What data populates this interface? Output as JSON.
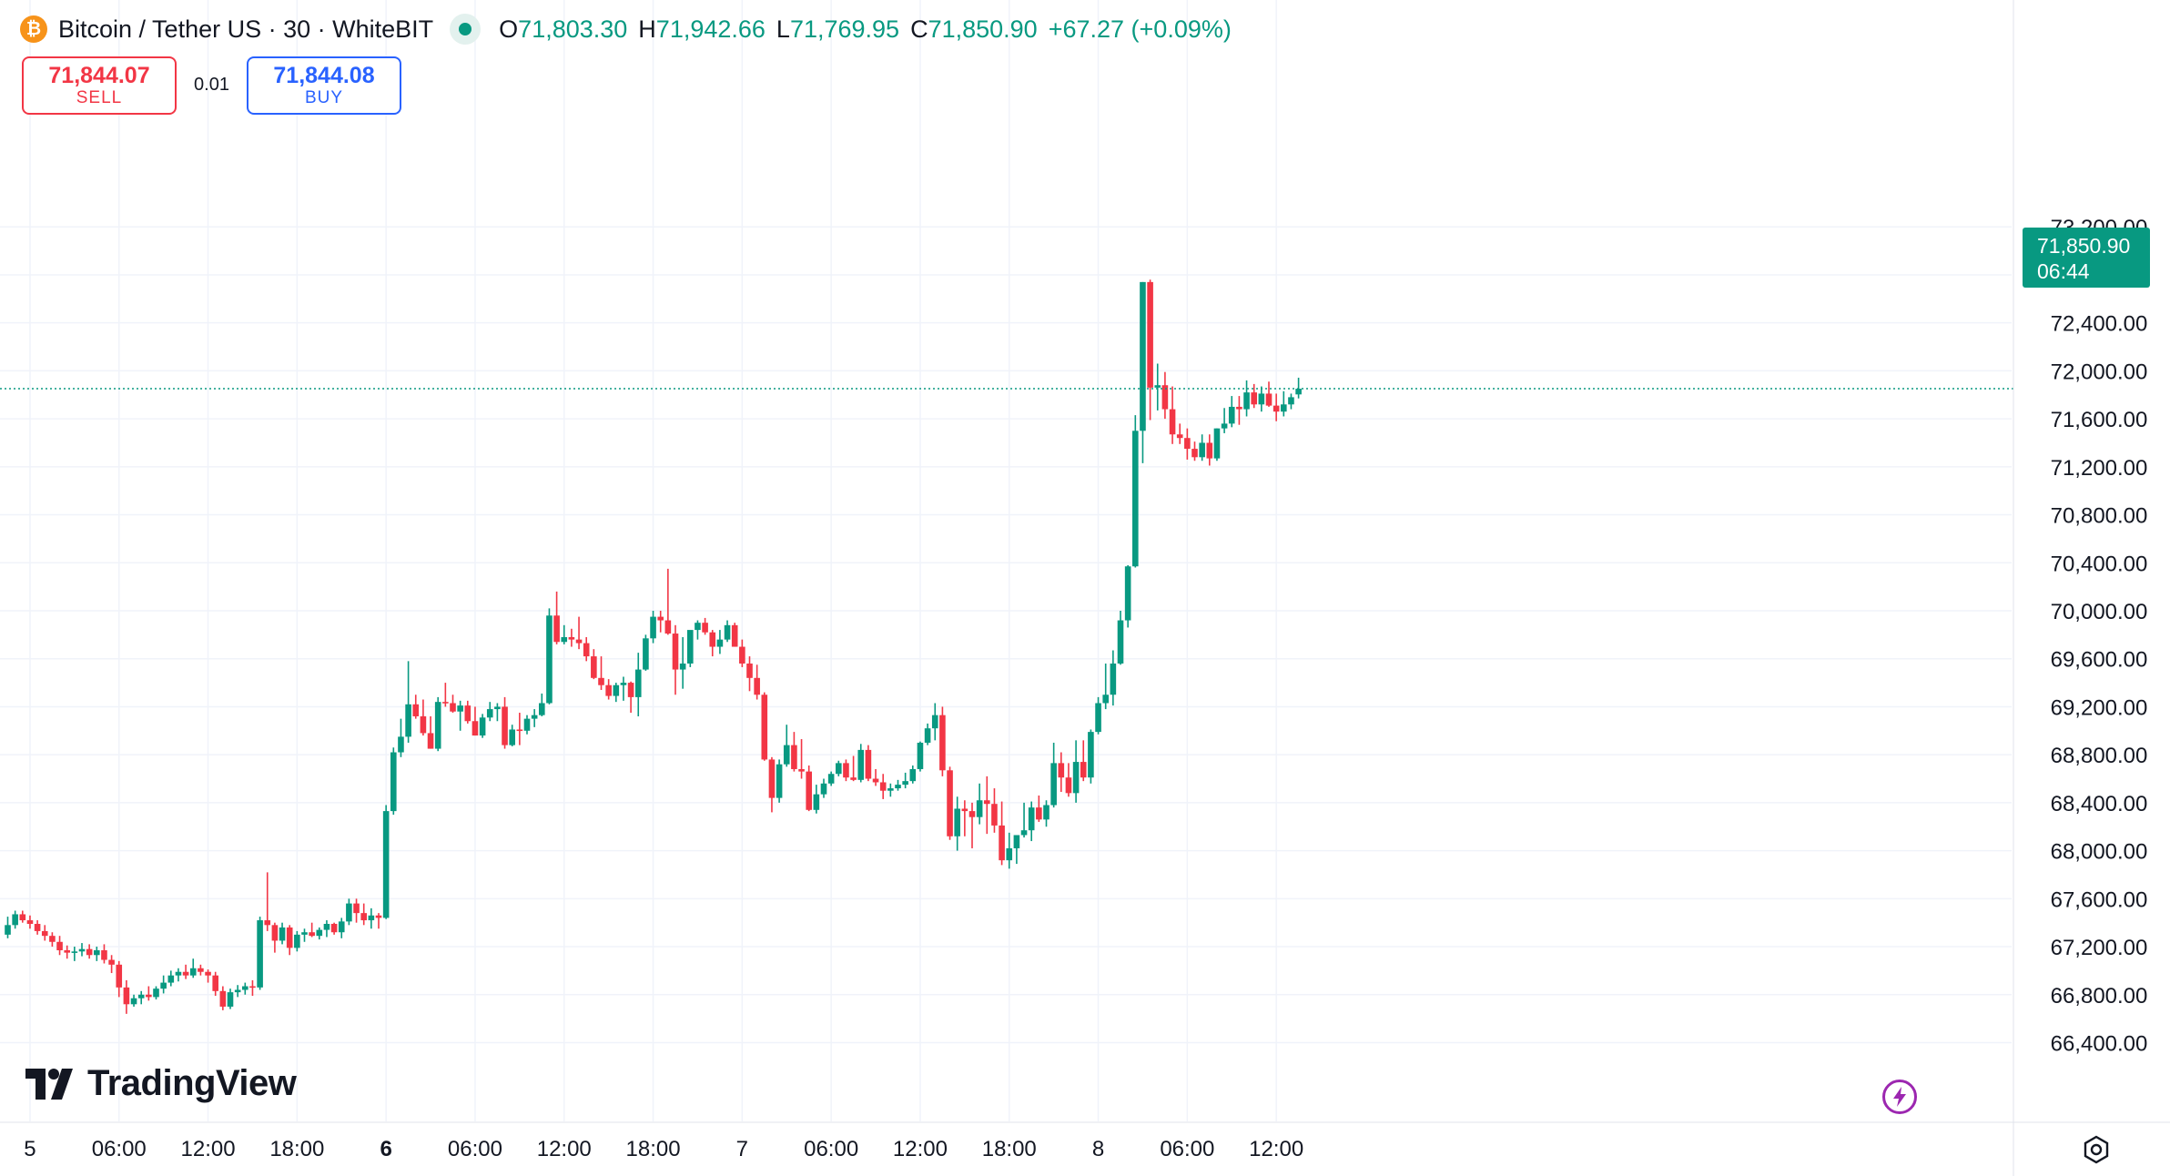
{
  "header": {
    "coin_glyph": "₿",
    "symbol": "Bitcoin / Tether US · 30 · WhiteBIT",
    "o_label": "O",
    "o_value": "71,803.30",
    "h_label": "H",
    "h_value": "71,942.66",
    "l_label": "L",
    "l_value": "71,769.95",
    "c_label": "C",
    "c_value": "71,850.90",
    "change": "+67.27 (+0.09%)"
  },
  "trade": {
    "sell_price": "71,844.07",
    "sell_label": "SELL",
    "spread": "0.01",
    "buy_price": "71,844.08",
    "buy_label": "BUY"
  },
  "last_price": {
    "price": "71,850.90",
    "countdown": "06:44",
    "value": 71850.9
  },
  "branding": {
    "name": "TradingView"
  },
  "colors": {
    "up": "#089981",
    "down": "#f23645",
    "grid": "#f0f3fa",
    "axis_text": "#131722",
    "brand_bitcoin": "#f7931a",
    "sell": "#f23645",
    "buy": "#2962ff",
    "lightning": "#9c27b0"
  },
  "icons": {
    "coin": "bitcoin-icon",
    "status": "market-open-dot-icon",
    "lightning": "lightning-icon",
    "settings": "settings-gear-icon"
  },
  "chart_data": {
    "type": "candlestick",
    "interval_minutes": 30,
    "ylim": [
      66200,
      73250
    ],
    "y_ticks": [
      66400,
      66800,
      67200,
      67600,
      68000,
      68400,
      68800,
      69200,
      69600,
      70000,
      70400,
      70800,
      71200,
      71600,
      72000,
      72400,
      72800,
      73200
    ],
    "y_tick_labels": [
      "66,400.00",
      "66,800.00",
      "67,200.00",
      "67,600.00",
      "68,000.00",
      "68,400.00",
      "68,800.00",
      "69,200.00",
      "69,600.00",
      "70,000.00",
      "70,400.00",
      "70,800.00",
      "71,200.00",
      "71,600.00",
      "72,000.00",
      "72,400.00",
      "72,800.00",
      "73,200.00"
    ],
    "x_tick_labels": [
      {
        "label": "5",
        "bar": 3,
        "bold": false
      },
      {
        "label": "06:00",
        "bar": 15,
        "bold": false
      },
      {
        "label": "12:00",
        "bar": 27,
        "bold": false
      },
      {
        "label": "18:00",
        "bar": 39,
        "bold": false
      },
      {
        "label": "6",
        "bar": 51,
        "bold": true
      },
      {
        "label": "06:00",
        "bar": 63,
        "bold": false
      },
      {
        "label": "12:00",
        "bar": 75,
        "bold": false
      },
      {
        "label": "18:00",
        "bar": 87,
        "bold": false
      },
      {
        "label": "7",
        "bar": 99,
        "bold": false
      },
      {
        "label": "06:00",
        "bar": 111,
        "bold": false
      },
      {
        "label": "12:00",
        "bar": 123,
        "bold": false
      },
      {
        "label": "18:00",
        "bar": 135,
        "bold": false
      },
      {
        "label": "8",
        "bar": 147,
        "bold": false
      },
      {
        "label": "06:00",
        "bar": 159,
        "bold": false
      },
      {
        "label": "12:00",
        "bar": 171,
        "bold": false
      }
    ],
    "candles": [
      [
        67300,
        67450,
        67270,
        67380
      ],
      [
        67380,
        67500,
        67350,
        67470
      ],
      [
        67470,
        67500,
        67400,
        67420
      ],
      [
        67420,
        67460,
        67350,
        67390
      ],
      [
        67390,
        67420,
        67300,
        67330
      ],
      [
        67330,
        67380,
        67250,
        67290
      ],
      [
        67290,
        67320,
        67200,
        67240
      ],
      [
        67240,
        67290,
        67130,
        67170
      ],
      [
        67170,
        67210,
        67100,
        67150
      ],
      [
        67150,
        67200,
        67080,
        67160
      ],
      [
        67160,
        67230,
        67120,
        67180
      ],
      [
        67180,
        67220,
        67100,
        67130
      ],
      [
        67130,
        67200,
        67080,
        67170
      ],
      [
        67170,
        67220,
        67060,
        67090
      ],
      [
        67090,
        67130,
        66980,
        67050
      ],
      [
        67050,
        67080,
        66780,
        66860
      ],
      [
        66860,
        66920,
        66640,
        66720
      ],
      [
        66720,
        66800,
        66700,
        66770
      ],
      [
        66770,
        66830,
        66720,
        66800
      ],
      [
        66800,
        66870,
        66750,
        66780
      ],
      [
        66780,
        66870,
        66760,
        66850
      ],
      [
        66850,
        66960,
        66810,
        66900
      ],
      [
        66900,
        67000,
        66870,
        66960
      ],
      [
        66960,
        67020,
        66910,
        66990
      ],
      [
        66990,
        67050,
        66930,
        66960
      ],
      [
        66960,
        67100,
        66940,
        67020
      ],
      [
        67020,
        67050,
        66960,
        66990
      ],
      [
        66990,
        67010,
        66900,
        66960
      ],
      [
        66960,
        66990,
        66790,
        66830
      ],
      [
        66830,
        66870,
        66670,
        66700
      ],
      [
        66700,
        66850,
        66680,
        66820
      ],
      [
        66820,
        66880,
        66780,
        66840
      ],
      [
        66840,
        66900,
        66800,
        66870
      ],
      [
        66870,
        66920,
        66790,
        66860
      ],
      [
        66860,
        67450,
        66840,
        67420
      ],
      [
        67420,
        67820,
        67330,
        67380
      ],
      [
        67380,
        67400,
        67150,
        67250
      ],
      [
        67250,
        67400,
        67220,
        67360
      ],
      [
        67360,
        67380,
        67130,
        67190
      ],
      [
        67190,
        67330,
        67160,
        67300
      ],
      [
        67300,
        67350,
        67240,
        67320
      ],
      [
        67320,
        67400,
        67280,
        67290
      ],
      [
        67290,
        67360,
        67260,
        67340
      ],
      [
        67340,
        67420,
        67280,
        67390
      ],
      [
        67390,
        67400,
        67300,
        67320
      ],
      [
        67320,
        67440,
        67270,
        67410
      ],
      [
        67410,
        67600,
        67380,
        67560
      ],
      [
        67560,
        67600,
        67400,
        67480
      ],
      [
        67480,
        67560,
        67380,
        67420
      ],
      [
        67420,
        67520,
        67350,
        67460
      ],
      [
        67460,
        67480,
        67350,
        67440
      ],
      [
        67440,
        68380,
        67430,
        68330
      ],
      [
        68330,
        68860,
        68300,
        68820
      ],
      [
        68820,
        69100,
        68780,
        68950
      ],
      [
        68950,
        69580,
        68900,
        69220
      ],
      [
        69220,
        69300,
        69100,
        69120
      ],
      [
        69120,
        69260,
        68960,
        68980
      ],
      [
        68980,
        69120,
        68850,
        68850
      ],
      [
        68850,
        69280,
        68830,
        69240
      ],
      [
        69240,
        69400,
        69200,
        69230
      ],
      [
        69230,
        69300,
        69150,
        69160
      ],
      [
        69160,
        69250,
        69000,
        69210
      ],
      [
        69210,
        69250,
        69060,
        69080
      ],
      [
        69080,
        69200,
        68960,
        68960
      ],
      [
        68960,
        69140,
        68940,
        69110
      ],
      [
        69110,
        69240,
        69080,
        69180
      ],
      [
        69180,
        69230,
        69080,
        69200
      ],
      [
        69200,
        69280,
        68850,
        68880
      ],
      [
        68880,
        69050,
        68870,
        69010
      ],
      [
        69010,
        69150,
        68880,
        69000
      ],
      [
        69000,
        69130,
        68970,
        69100
      ],
      [
        69100,
        69180,
        69030,
        69130
      ],
      [
        69130,
        69310,
        69120,
        69230
      ],
      [
        69230,
        70020,
        69220,
        69960
      ],
      [
        69960,
        70160,
        69720,
        69740
      ],
      [
        69740,
        69880,
        69720,
        69780
      ],
      [
        69780,
        69850,
        69700,
        69760
      ],
      [
        69760,
        69950,
        69680,
        69730
      ],
      [
        69730,
        69780,
        69580,
        69620
      ],
      [
        69620,
        69680,
        69430,
        69440
      ],
      [
        69440,
        69620,
        69340,
        69380
      ],
      [
        69380,
        69430,
        69260,
        69290
      ],
      [
        69290,
        69400,
        69240,
        69380
      ],
      [
        69380,
        69450,
        69250,
        69400
      ],
      [
        69400,
        69410,
        69150,
        69280
      ],
      [
        69280,
        69650,
        69120,
        69510
      ],
      [
        69510,
        69800,
        69500,
        69770
      ],
      [
        69770,
        70000,
        69730,
        69950
      ],
      [
        69950,
        70000,
        69820,
        69920
      ],
      [
        69920,
        70350,
        69800,
        69810
      ],
      [
        69810,
        69880,
        69300,
        69510
      ],
      [
        69510,
        69780,
        69350,
        69560
      ],
      [
        69560,
        69800,
        69530,
        69840
      ],
      [
        69840,
        69920,
        69760,
        69900
      ],
      [
        69900,
        69940,
        69800,
        69820
      ],
      [
        69820,
        69840,
        69620,
        69700
      ],
      [
        69700,
        69840,
        69640,
        69760
      ],
      [
        69760,
        69920,
        69740,
        69880
      ],
      [
        69880,
        69900,
        69700,
        69700
      ],
      [
        69700,
        69760,
        69530,
        69560
      ],
      [
        69560,
        69620,
        69330,
        69440
      ],
      [
        69440,
        69550,
        69260,
        69300
      ],
      [
        69300,
        69320,
        68750,
        68760
      ],
      [
        68760,
        68780,
        68320,
        68440
      ],
      [
        68440,
        68760,
        68400,
        68720
      ],
      [
        68720,
        69050,
        68700,
        68880
      ],
      [
        68880,
        68990,
        68660,
        68680
      ],
      [
        68680,
        68930,
        68600,
        68660
      ],
      [
        68660,
        68710,
        68330,
        68340
      ],
      [
        68340,
        68550,
        68310,
        68470
      ],
      [
        68470,
        68600,
        68440,
        68560
      ],
      [
        68560,
        68660,
        68540,
        68640
      ],
      [
        68640,
        68750,
        68620,
        68730
      ],
      [
        68730,
        68760,
        68580,
        68610
      ],
      [
        68610,
        68790,
        68580,
        68590
      ],
      [
        68590,
        68890,
        68570,
        68840
      ],
      [
        68840,
        68880,
        68580,
        68600
      ],
      [
        68600,
        68680,
        68540,
        68570
      ],
      [
        68570,
        68640,
        68430,
        68500
      ],
      [
        68500,
        68560,
        68450,
        68520
      ],
      [
        68520,
        68590,
        68500,
        68550
      ],
      [
        68550,
        68650,
        68520,
        68580
      ],
      [
        68580,
        68710,
        68560,
        68680
      ],
      [
        68680,
        68910,
        68660,
        68900
      ],
      [
        68900,
        69060,
        68880,
        69020
      ],
      [
        69020,
        69230,
        68920,
        69130
      ],
      [
        69130,
        69200,
        68620,
        68670
      ],
      [
        68670,
        68700,
        68090,
        68120
      ],
      [
        68120,
        68450,
        68000,
        68350
      ],
      [
        68350,
        68420,
        68120,
        68330
      ],
      [
        68330,
        68400,
        68020,
        68280
      ],
      [
        68280,
        68560,
        68220,
        68420
      ],
      [
        68420,
        68620,
        68140,
        68390
      ],
      [
        68390,
        68520,
        68150,
        68210
      ],
      [
        68210,
        68410,
        67880,
        67920
      ],
      [
        67920,
        68150,
        67850,
        68020
      ],
      [
        68020,
        68120,
        67890,
        68130
      ],
      [
        68130,
        68400,
        68110,
        68170
      ],
      [
        68170,
        68410,
        68080,
        68360
      ],
      [
        68360,
        68460,
        68240,
        68260
      ],
      [
        68260,
        68420,
        68200,
        68380
      ],
      [
        68380,
        68900,
        68360,
        68730
      ],
      [
        68730,
        68820,
        68490,
        68610
      ],
      [
        68610,
        68730,
        68450,
        68480
      ],
      [
        68480,
        68920,
        68400,
        68740
      ],
      [
        68740,
        68920,
        68580,
        68610
      ],
      [
        68610,
        69010,
        68560,
        68990
      ],
      [
        68990,
        69280,
        68970,
        69230
      ],
      [
        69230,
        69560,
        69180,
        69300
      ],
      [
        69300,
        69670,
        69210,
        69560
      ],
      [
        69560,
        70000,
        69550,
        69920
      ],
      [
        69920,
        70380,
        69860,
        70370
      ],
      [
        70370,
        71630,
        70360,
        71500
      ],
      [
        71500,
        72740,
        71230,
        72740
      ],
      [
        72740,
        72760,
        71590,
        71860
      ],
      [
        71860,
        72060,
        71670,
        71880
      ],
      [
        71880,
        71990,
        71600,
        71680
      ],
      [
        71680,
        71870,
        71390,
        71470
      ],
      [
        71470,
        71560,
        71390,
        71440
      ],
      [
        71440,
        71520,
        71260,
        71350
      ],
      [
        71350,
        71410,
        71250,
        71280
      ],
      [
        71280,
        71470,
        71250,
        71400
      ],
      [
        71400,
        71470,
        71210,
        71270
      ],
      [
        71270,
        71520,
        71250,
        71520
      ],
      [
        71520,
        71690,
        71480,
        71560
      ],
      [
        71560,
        71790,
        71530,
        71700
      ],
      [
        71700,
        71790,
        71550,
        71680
      ],
      [
        71680,
        71920,
        71620,
        71820
      ],
      [
        71820,
        71890,
        71690,
        71720
      ],
      [
        71720,
        71870,
        71660,
        71810
      ],
      [
        71810,
        71910,
        71700,
        71710
      ],
      [
        71710,
        71810,
        71580,
        71660
      ],
      [
        71660,
        71830,
        71620,
        71720
      ],
      [
        71720,
        71810,
        71680,
        71780
      ],
      [
        71803.3,
        71942.66,
        71769.95,
        71850.9
      ]
    ]
  }
}
